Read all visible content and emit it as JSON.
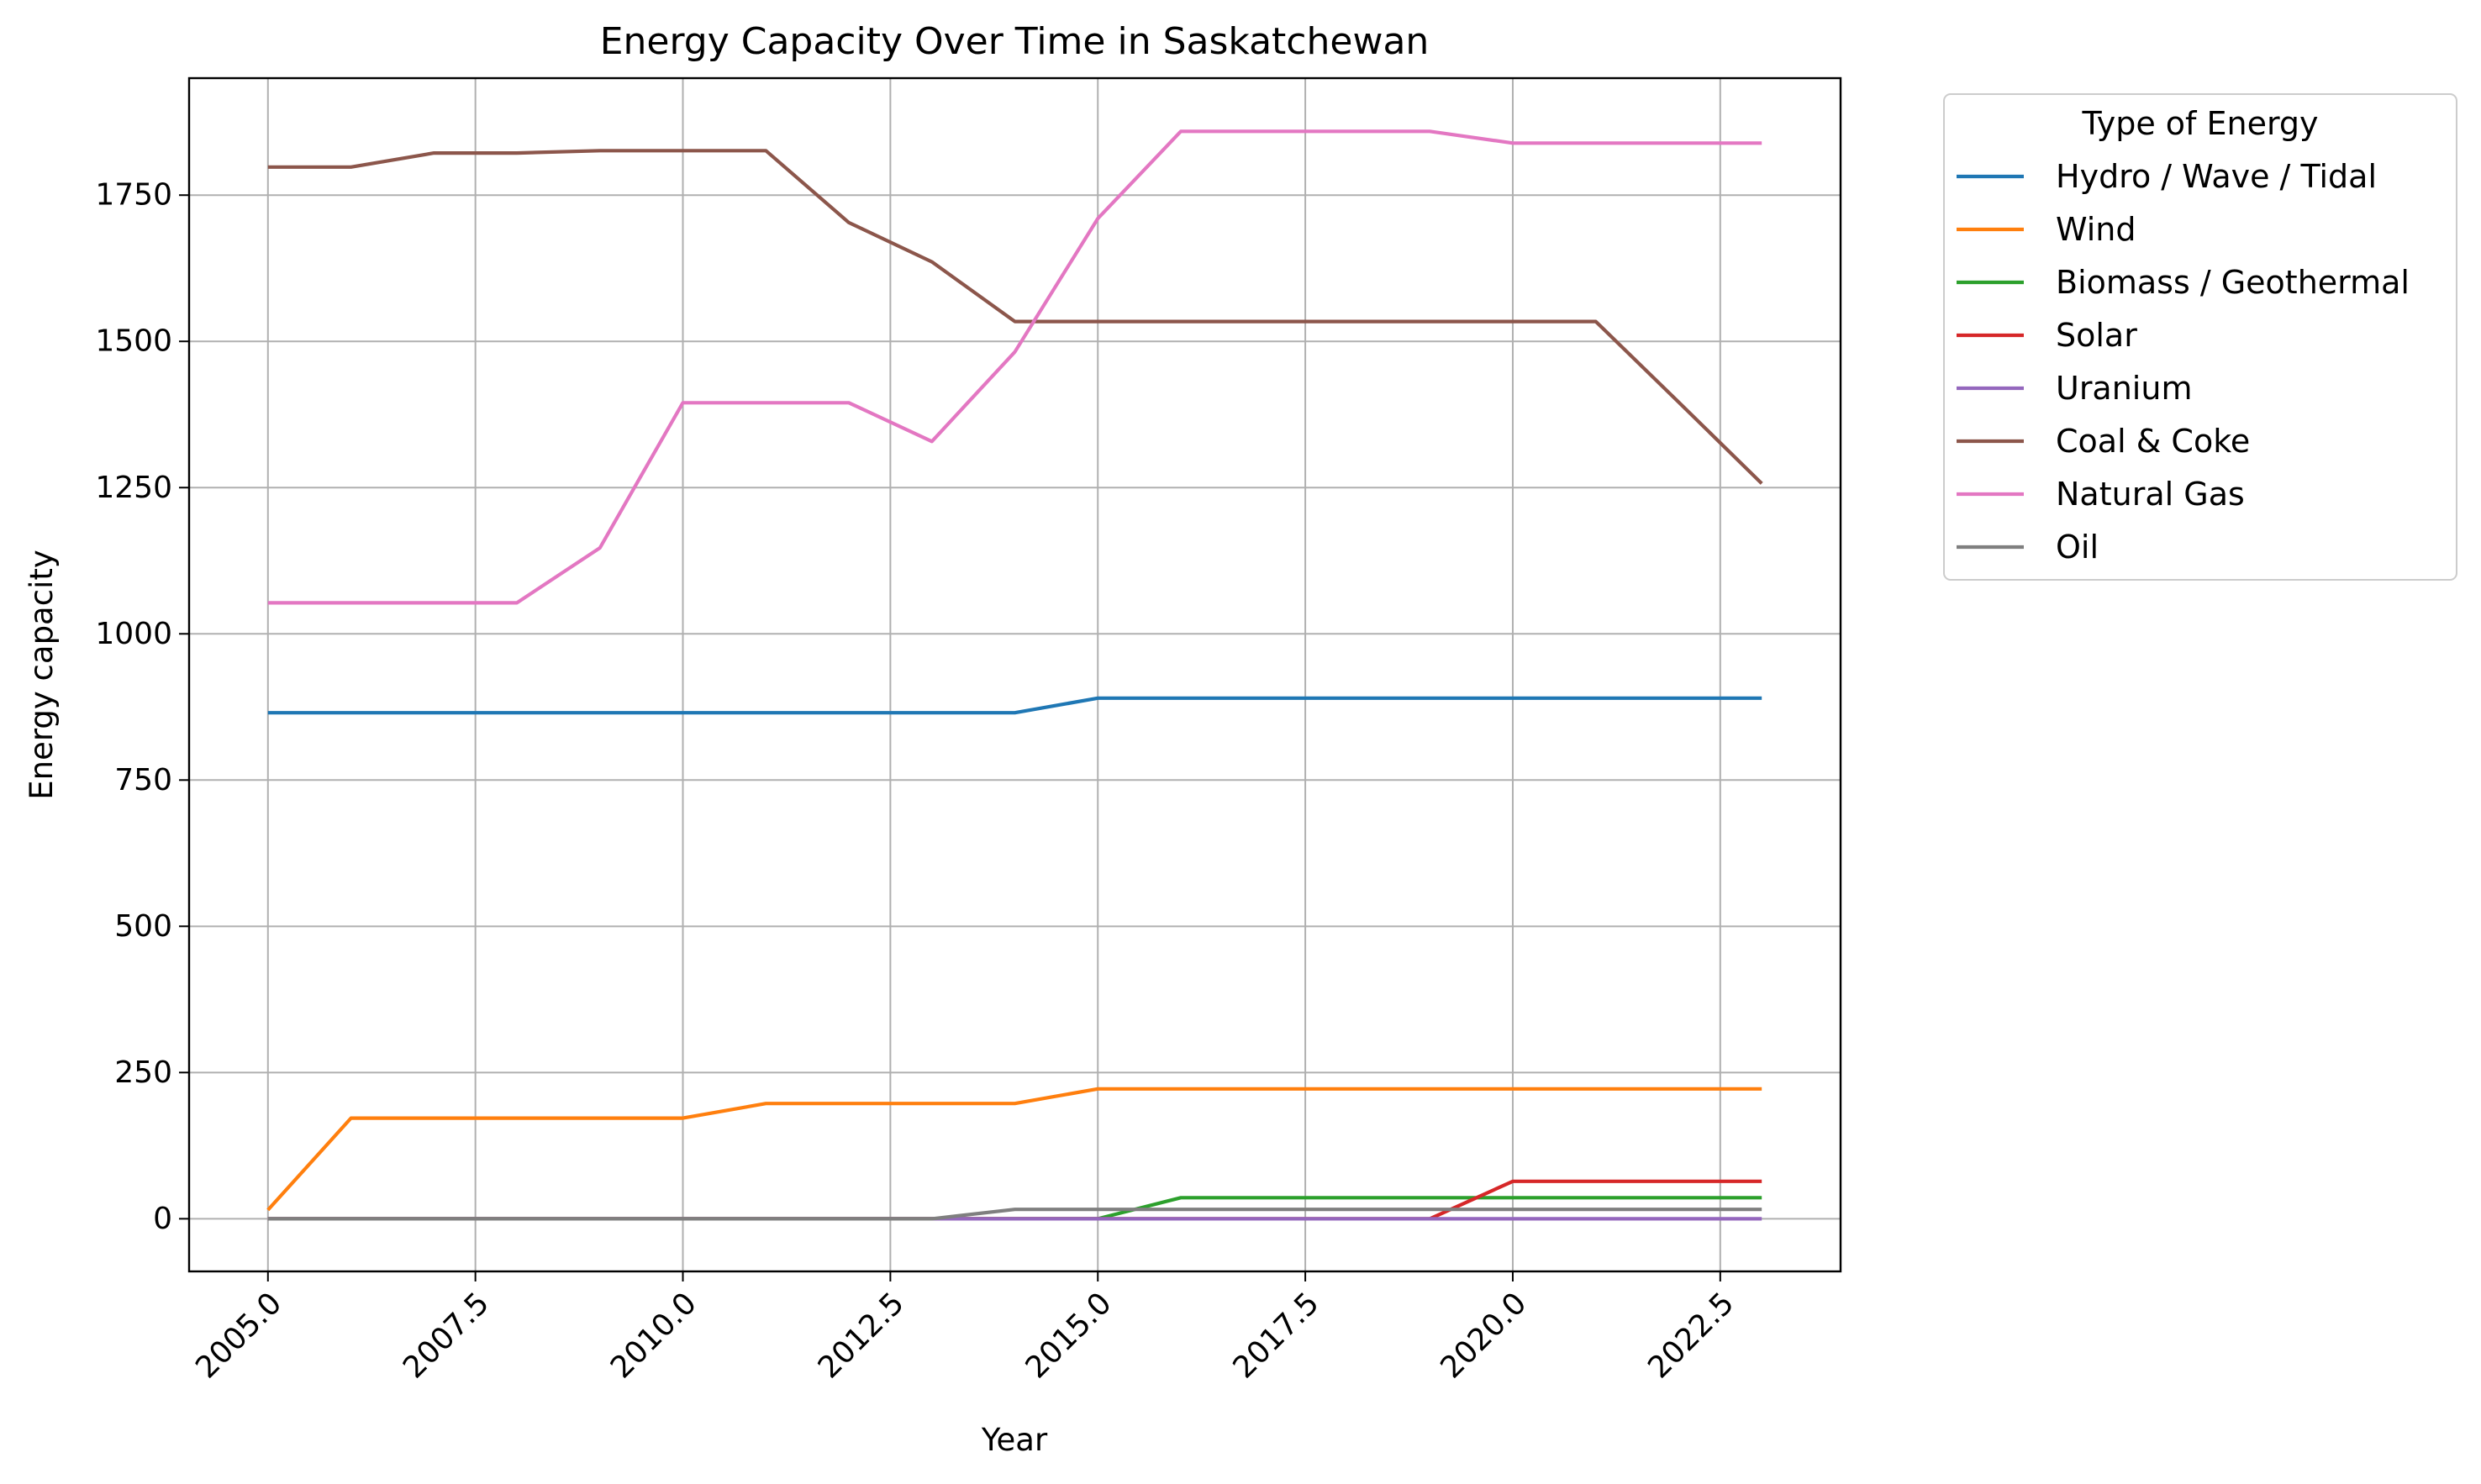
{
  "chart_data": {
    "type": "line",
    "title": "Energy Capacity Over Time in Saskatchewan",
    "xlabel": "Year",
    "ylabel": "Energy capacity",
    "xlim": [
      2004.05,
      2023.95
    ],
    "ylim": [
      -90,
      1950
    ],
    "x_ticks": [
      2005.0,
      2007.5,
      2010.0,
      2012.5,
      2015.0,
      2017.5,
      2020.0,
      2022.5
    ],
    "x_tick_labels": [
      "2005.0",
      "2007.5",
      "2010.0",
      "2012.5",
      "2015.0",
      "2017.5",
      "2020.0",
      "2022.5"
    ],
    "y_ticks": [
      0,
      250,
      500,
      750,
      1000,
      1250,
      1500,
      1750
    ],
    "y_tick_labels": [
      "0",
      "250",
      "500",
      "750",
      "1000",
      "1250",
      "1500",
      "1750"
    ],
    "grid": true,
    "legend_title": "Type of Energy",
    "legend_position": "outside-right-top",
    "x": [
      2005,
      2006,
      2007,
      2008,
      2009,
      2010,
      2011,
      2012,
      2013,
      2014,
      2015,
      2016,
      2017,
      2018,
      2019,
      2020,
      2021,
      2022,
      2023
    ],
    "series": [
      {
        "name": "Hydro / Wave / Tidal",
        "color": "#1f77b4",
        "values": [
          865,
          865,
          865,
          865,
          865,
          865,
          865,
          865,
          865,
          865,
          890,
          890,
          890,
          890,
          890,
          890,
          890,
          890,
          890
        ]
      },
      {
        "name": "Wind",
        "color": "#ff7f0e",
        "values": [
          15,
          172,
          172,
          172,
          172,
          172,
          197,
          197,
          197,
          197,
          222,
          222,
          222,
          222,
          222,
          222,
          222,
          222,
          222
        ]
      },
      {
        "name": "Biomass / Geothermal",
        "color": "#2ca02c",
        "values": [
          0,
          0,
          0,
          0,
          0,
          0,
          0,
          0,
          0,
          0,
          0,
          36,
          36,
          36,
          36,
          36,
          36,
          36,
          36
        ]
      },
      {
        "name": "Solar",
        "color": "#d62728",
        "values": [
          0,
          0,
          0,
          0,
          0,
          0,
          0,
          0,
          0,
          0,
          0,
          0,
          0,
          0,
          0,
          64,
          64,
          64,
          64
        ]
      },
      {
        "name": "Uranium",
        "color": "#9467bd",
        "values": [
          0,
          0,
          0,
          0,
          0,
          0,
          0,
          0,
          0,
          0,
          0,
          0,
          0,
          0,
          0,
          0,
          0,
          0,
          0
        ]
      },
      {
        "name": "Coal & Coke",
        "color": "#8c564b",
        "values": [
          1798,
          1798,
          1822,
          1822,
          1826,
          1826,
          1826,
          1703,
          1636,
          1534,
          1534,
          1534,
          1534,
          1534,
          1534,
          1534,
          1534,
          1396,
          1257
        ]
      },
      {
        "name": "Natural Gas",
        "color": "#e377c2",
        "values": [
          1053,
          1053,
          1053,
          1053,
          1147,
          1395,
          1395,
          1395,
          1329,
          1482,
          1710,
          1859,
          1859,
          1859,
          1859,
          1839,
          1839,
          1839,
          1839
        ]
      },
      {
        "name": "Oil",
        "color": "#7f7f7f",
        "values": [
          0,
          0,
          0,
          0,
          0,
          0,
          0,
          0,
          0,
          16,
          16,
          16,
          16,
          16,
          16,
          16,
          16,
          16,
          16
        ]
      }
    ]
  }
}
